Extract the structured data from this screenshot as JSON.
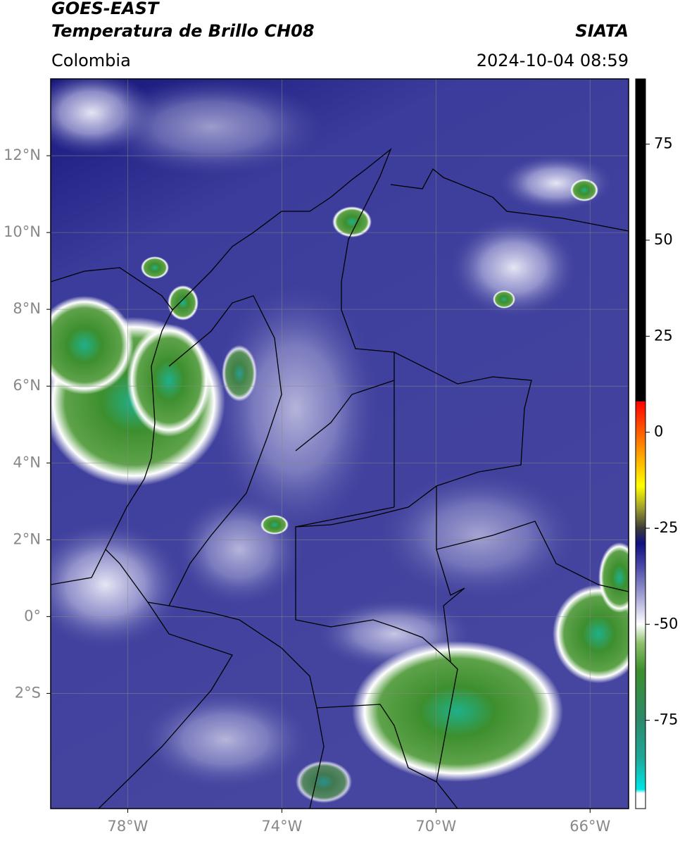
{
  "chart_data": {
    "type": "map",
    "title": "GOES-EAST",
    "subtitle": "Temperatura de Brillo CH08",
    "region": "Colombia",
    "source": "SIATA",
    "datetime": "2024-10-04 08:59",
    "xlim": [
      -80,
      -65
    ],
    "ylim": [
      -5,
      14
    ],
    "xticks": [
      {
        "value": -78,
        "label": "78°W"
      },
      {
        "value": -74,
        "label": "74°W"
      },
      {
        "value": -70,
        "label": "70°W"
      },
      {
        "value": -66,
        "label": "66°W"
      }
    ],
    "yticks": [
      {
        "value": 12,
        "label": "12°N"
      },
      {
        "value": 10,
        "label": "10°N"
      },
      {
        "value": 8,
        "label": "8°N"
      },
      {
        "value": 6,
        "label": "6°N"
      },
      {
        "value": 4,
        "label": "4°N"
      },
      {
        "value": 2,
        "label": "2°N"
      },
      {
        "value": 0,
        "label": "0°"
      },
      {
        "value": -2,
        "label": "2°S"
      }
    ],
    "grid": true,
    "colorbar": {
      "lim": [
        -98,
        92
      ],
      "ticks": [
        75,
        50,
        25,
        0,
        -25,
        -50,
        -75
      ],
      "colormap": [
        {
          "value": -98,
          "color": "#ffffff"
        },
        {
          "value": -94,
          "color": "#ffffff"
        },
        {
          "value": -93,
          "color": "#00e5e5"
        },
        {
          "value": -85,
          "color": "#1fa89a"
        },
        {
          "value": -75,
          "color": "#2c8a6a"
        },
        {
          "value": -62,
          "color": "#3d8f2e"
        },
        {
          "value": -55,
          "color": "#8cbf6a"
        },
        {
          "value": -50,
          "color": "#ffffff"
        },
        {
          "value": -42,
          "color": "#9a9ad0"
        },
        {
          "value": -35,
          "color": "#4a4aa8"
        },
        {
          "value": -29,
          "color": "#101080"
        },
        {
          "value": -25,
          "color": "#3a3a3a"
        },
        {
          "value": -20,
          "color": "#9a9a30"
        },
        {
          "value": -14,
          "color": "#ffff00"
        },
        {
          "value": -5,
          "color": "#ff9900"
        },
        {
          "value": 8,
          "color": "#ff0000"
        },
        {
          "value": 8.1,
          "color": "#000000"
        },
        {
          "value": 92,
          "color": "#000000"
        }
      ]
    }
  }
}
